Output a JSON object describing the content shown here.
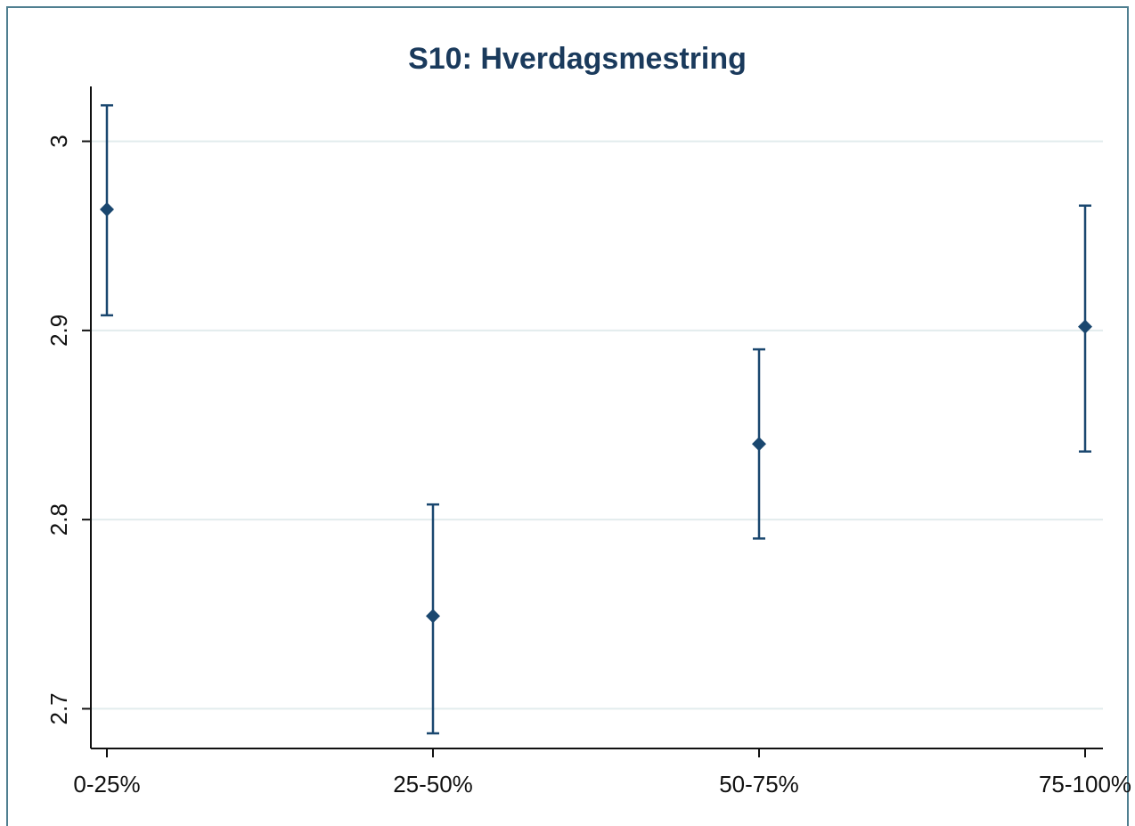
{
  "chart_data": {
    "type": "errorbar",
    "title": "S10: Hverdagsmestring",
    "categories": [
      "0-25%",
      "25-50%",
      "50-75%",
      "75-100%"
    ],
    "values": [
      2.964,
      2.749,
      2.84,
      2.902
    ],
    "lower": [
      2.908,
      2.687,
      2.79,
      2.836
    ],
    "upper": [
      3.019,
      2.808,
      2.89,
      2.966
    ],
    "color": "#1a476f",
    "ylim": [
      2.679,
      3.029
    ],
    "yticks": [
      2.7,
      2.8,
      2.9,
      3
    ],
    "grid": true
  }
}
